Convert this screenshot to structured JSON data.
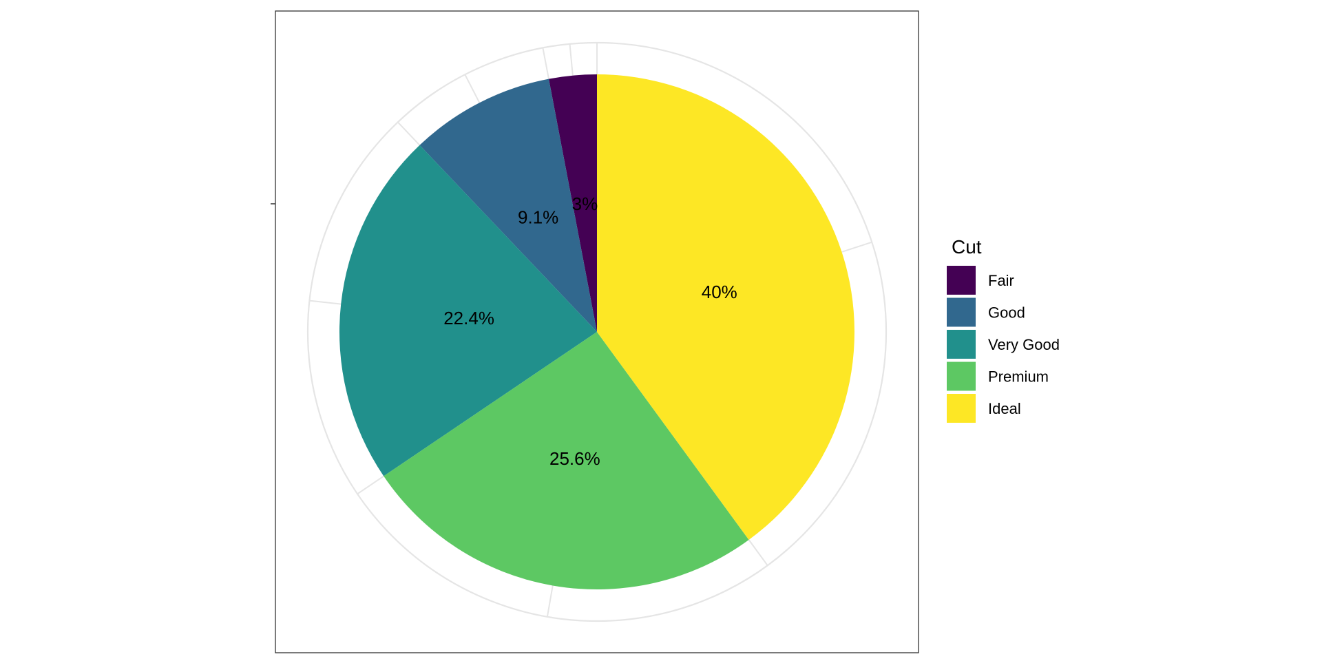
{
  "chart_data": {
    "type": "pie",
    "legend_title": "Cut",
    "legend_position": "right",
    "coord": "polar",
    "start": "12 o'clock",
    "direction": "counter-clockwise",
    "grid": true,
    "slices": [
      {
        "category": "Fair",
        "value": 3.0,
        "label": "3%",
        "color": "#440154"
      },
      {
        "category": "Good",
        "value": 9.1,
        "label": "9.1%",
        "color": "#31688E"
      },
      {
        "category": "Very Good",
        "value": 22.4,
        "label": "22.4%",
        "color": "#21908C"
      },
      {
        "category": "Premium",
        "value": 25.6,
        "label": "25.6%",
        "color": "#5DC863"
      },
      {
        "category": "Ideal",
        "value": 40.0,
        "label": "40%",
        "color": "#FDE725"
      }
    ]
  }
}
